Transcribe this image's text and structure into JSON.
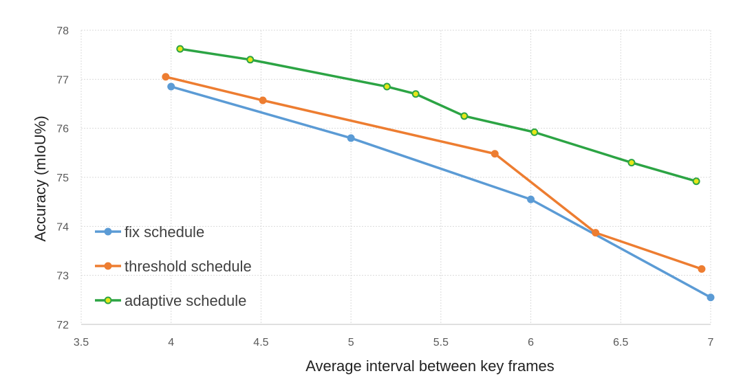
{
  "chart_data": {
    "type": "line",
    "title": "",
    "xlabel": "Average interval between key frames",
    "ylabel": "Accuracy (mIoU%)",
    "xlim": [
      3.5,
      7
    ],
    "ylim": [
      72,
      78
    ],
    "xticks": [
      3.5,
      4,
      4.5,
      5,
      5.5,
      6,
      6.5,
      7
    ],
    "xtick_labels": [
      "3.5",
      "4",
      "4.5",
      "5",
      "5.5",
      "6",
      "6.5",
      "7"
    ],
    "yticks": [
      72,
      73,
      74,
      75,
      76,
      77,
      78
    ],
    "ytick_labels": [
      "72",
      "73",
      "74",
      "75",
      "76",
      "77",
      "78"
    ],
    "grid": true,
    "legend_position": "bottom-left",
    "series": [
      {
        "name": "fix schedule",
        "color": "#5b9bd5",
        "marker_color": "#5b9bd5",
        "x": [
          4.0,
          5.0,
          6.0,
          7.0
        ],
        "y": [
          76.85,
          75.8,
          74.55,
          72.55
        ]
      },
      {
        "name": "threshold schedule",
        "color": "#ed7d31",
        "marker_color": "#ed7d31",
        "x": [
          3.97,
          4.51,
          5.8,
          6.36,
          6.95
        ],
        "y": [
          77.05,
          76.57,
          75.48,
          73.87,
          73.13
        ]
      },
      {
        "name": "adaptive schedule",
        "color": "#2ca444",
        "marker_color": "#e6e619",
        "x": [
          4.05,
          4.44,
          5.2,
          5.36,
          5.63,
          6.02,
          6.56,
          6.92
        ],
        "y": [
          77.62,
          77.4,
          76.85,
          76.7,
          76.25,
          75.92,
          75.3,
          74.92
        ]
      }
    ]
  }
}
